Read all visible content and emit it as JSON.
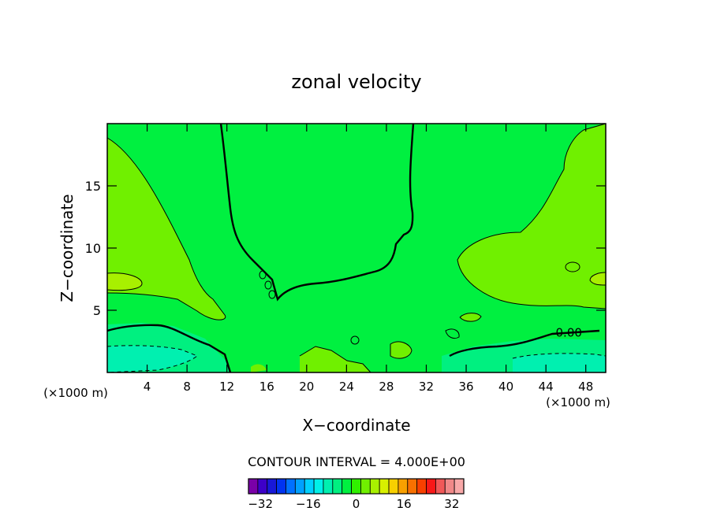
{
  "chart_data": {
    "type": "heatmap",
    "title": "zonal velocity",
    "xlabel": "X−coordinate",
    "ylabel": "Z−coordinate",
    "x_unit_left": "(×1000 m)",
    "x_unit_right": "(×1000 m)",
    "xlim": [
      0,
      50
    ],
    "ylim": [
      0,
      20
    ],
    "x_ticks": [
      4,
      8,
      12,
      16,
      20,
      24,
      28,
      32,
      36,
      40,
      44,
      48
    ],
    "y_ticks": [
      5,
      10,
      15
    ],
    "contour_interval_text": "CONTOUR INTERVAL = 4.000E+00",
    "contour_labels": [
      {
        "x": 46.3,
        "y": 3.2,
        "text": "0.00"
      }
    ],
    "colorbar": {
      "min": -36,
      "max": 36,
      "step": 4,
      "tick_labels": [
        {
          "value": -32,
          "text": "−32"
        },
        {
          "value": -16,
          "text": "−16"
        },
        {
          "value": 0,
          "text": "0"
        },
        {
          "value": 16,
          "text": "16"
        },
        {
          "value": 32,
          "text": "32"
        }
      ],
      "colors": [
        "#7a00a8",
        "#3d00c8",
        "#1818d8",
        "#0033f0",
        "#0070ff",
        "#00a0ff",
        "#00d0ff",
        "#00f0e8",
        "#00f0b0",
        "#00f080",
        "#00f040",
        "#30f000",
        "#70f000",
        "#a8f000",
        "#d8f000",
        "#f8d000",
        "#f8a000",
        "#f87000",
        "#f84000",
        "#f81818",
        "#f05858",
        "#f08888",
        "#f8a8a8"
      ]
    },
    "grid": false
  }
}
